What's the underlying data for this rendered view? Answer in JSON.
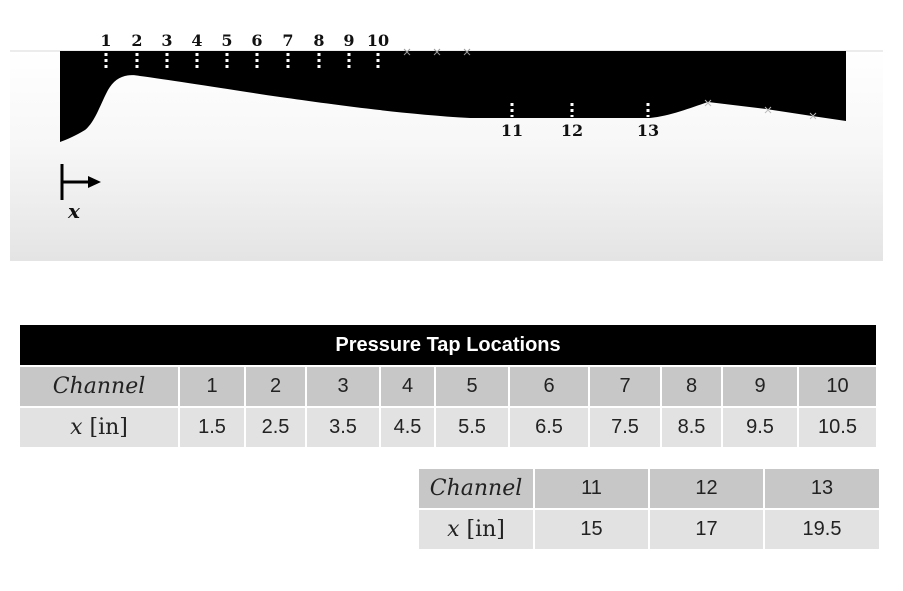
{
  "diagram": {
    "x_axis_label": "x",
    "upper_taps": [
      "1",
      "2",
      "3",
      "4",
      "5",
      "6",
      "7",
      "8",
      "9",
      "10"
    ],
    "lower_taps": [
      "11",
      "12",
      "13"
    ]
  },
  "table_main": {
    "title": "Pressure Tap Locations",
    "row_header_channel": "Channel",
    "row_header_x_var": "x",
    "row_header_x_unit": "[in]",
    "channels": [
      "1",
      "2",
      "3",
      "4",
      "5",
      "6",
      "7",
      "8",
      "9",
      "10"
    ],
    "x_in": [
      "1.5",
      "2.5",
      "3.5",
      "4.5",
      "5.5",
      "6.5",
      "7.5",
      "8.5",
      "9.5",
      "10.5"
    ]
  },
  "table_secondary": {
    "row_header_channel": "Channel",
    "row_header_x_var": "x",
    "row_header_x_unit": "[in]",
    "channels": [
      "11",
      "12",
      "13"
    ],
    "x_in": [
      "15",
      "17",
      "19.5"
    ]
  },
  "colors": {
    "body_fill": "#000000",
    "title_bg": "#000000",
    "channel_row_bg": "#c7c7c7",
    "x_row_bg": "#e2e2e2"
  }
}
